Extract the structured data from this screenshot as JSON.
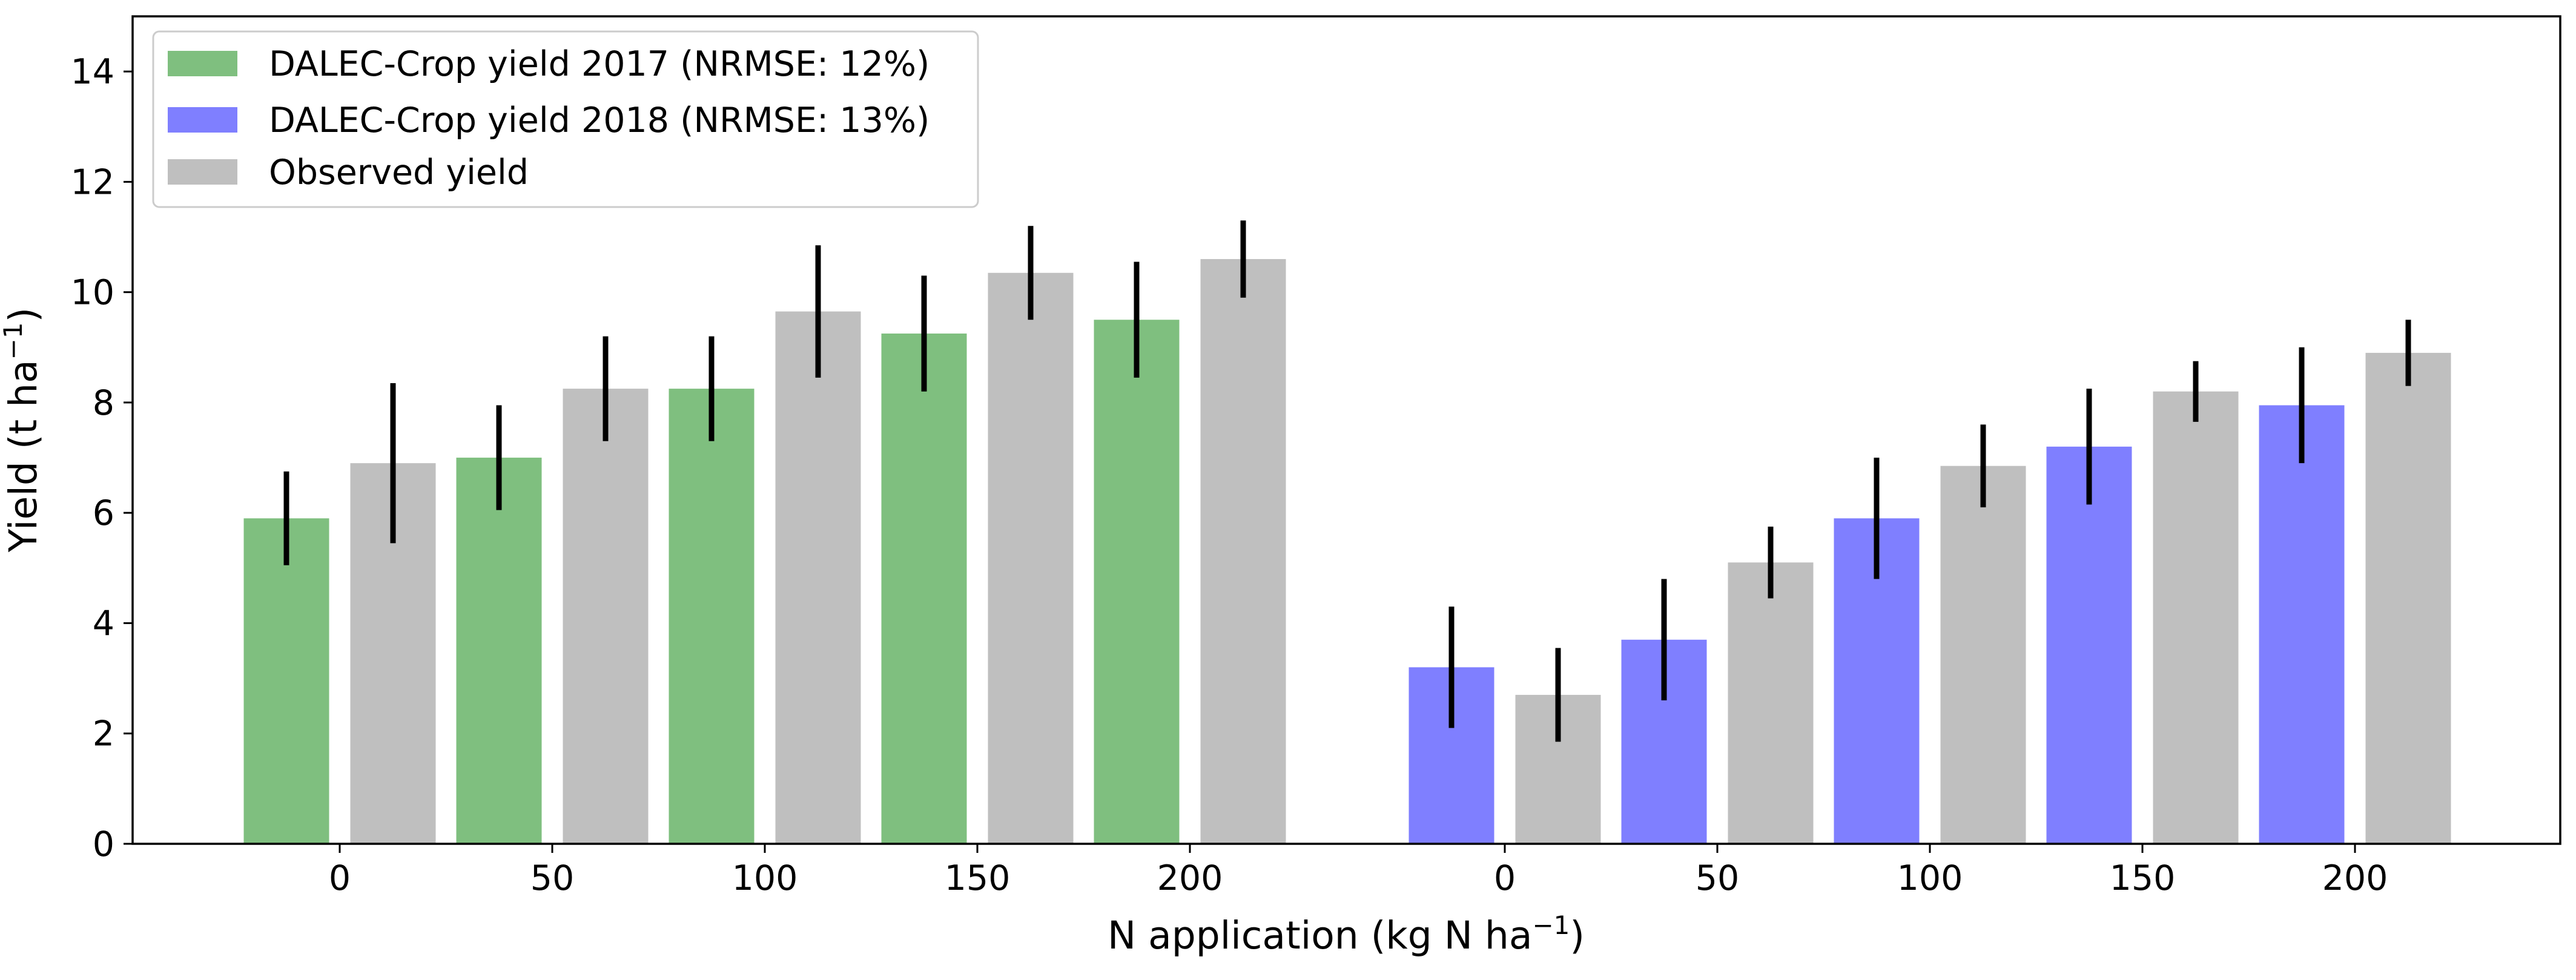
{
  "chart_data": {
    "type": "bar",
    "title": "",
    "xlabel": "N application (kg N ha",
    "xlabel_sup": "−1",
    "xlabel_end": ")",
    "ylabel": "Yield (t ha",
    "ylabel_sup": "−1",
    "ylabel_end": ")",
    "ylim": [
      0,
      15
    ],
    "yticks": [
      0,
      2,
      4,
      6,
      8,
      10,
      12,
      14
    ],
    "grid": false,
    "legend_position": "top-left",
    "groups": [
      {
        "year": "2017",
        "categories": [
          "0",
          "50",
          "100",
          "150",
          "200"
        ],
        "series": [
          {
            "name": "DALEC-Crop yield 2017 (NRMSE: 12%)",
            "color": "#7fbf7f",
            "values": [
              5.9,
              7.0,
              8.25,
              9.25,
              9.5
            ],
            "errors": [
              0.85,
              0.95,
              0.95,
              1.05,
              1.05
            ]
          },
          {
            "name": "Observed yield",
            "color": "#bfbfbf",
            "values": [
              6.9,
              8.25,
              9.65,
              10.35,
              10.6
            ],
            "errors": [
              1.45,
              0.95,
              1.2,
              0.85,
              0.7
            ]
          }
        ]
      },
      {
        "year": "2018",
        "categories": [
          "0",
          "50",
          "100",
          "150",
          "200"
        ],
        "series": [
          {
            "name": "DALEC-Crop yield 2018 (NRMSE: 13%)",
            "color": "#7f7fff",
            "values": [
              3.2,
              3.7,
              5.9,
              7.2,
              7.95
            ],
            "errors": [
              1.1,
              1.1,
              1.1,
              1.05,
              1.05
            ]
          },
          {
            "name": "Observed yield",
            "color": "#bfbfbf",
            "values": [
              2.7,
              5.1,
              6.85,
              8.2,
              8.9
            ],
            "errors": [
              0.85,
              0.65,
              0.75,
              0.55,
              0.6
            ]
          }
        ]
      }
    ],
    "legend": [
      {
        "label": "DALEC-Crop yield 2017 (NRMSE: 12%)",
        "color": "#7fbf7f"
      },
      {
        "label": "DALEC-Crop yield 2018 (NRMSE: 13%)",
        "color": "#7f7fff"
      },
      {
        "label": "Observed yield",
        "color": "#bfbfbf"
      }
    ]
  }
}
